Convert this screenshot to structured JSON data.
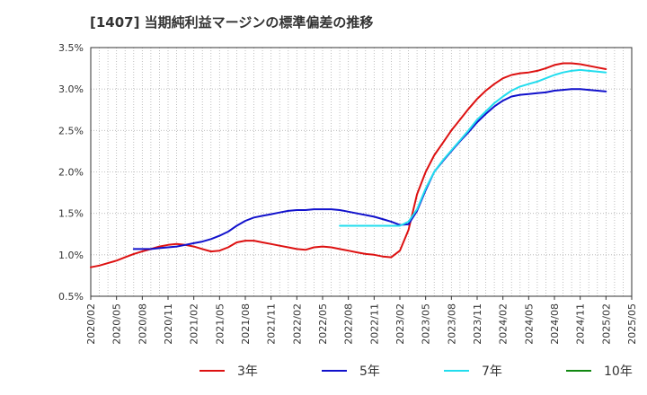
{
  "chart_data": {
    "type": "line",
    "title": "[1407]  当期純利益マージンの標準偏差の推移",
    "xlabel": "",
    "ylabel": "",
    "x_ticks": [
      "2020/02",
      "2020/05",
      "2020/08",
      "2020/11",
      "2021/02",
      "2021/05",
      "2021/08",
      "2021/11",
      "2022/02",
      "2022/05",
      "2022/08",
      "2022/11",
      "2023/02",
      "2023/05",
      "2023/08",
      "2023/11",
      "2024/02",
      "2024/05",
      "2024/08",
      "2024/11",
      "2025/02",
      "2025/05"
    ],
    "y_ticks": [
      "0.5%",
      "1.0%",
      "1.5%",
      "2.0%",
      "2.5%",
      "3.0%",
      "3.5%"
    ],
    "ylim": [
      0.5,
      3.5
    ],
    "grid": true,
    "legend_position": "bottom",
    "colors": {
      "3年": "#dd1111",
      "5年": "#1111cc",
      "7年": "#22ddee",
      "10年": "#118811"
    },
    "series": [
      {
        "name": "3年",
        "color": "#dd1111",
        "x": [
          "2020/02",
          "2020/03",
          "2020/04",
          "2020/05",
          "2020/06",
          "2020/07",
          "2020/08",
          "2020/09",
          "2020/10",
          "2020/11",
          "2020/12",
          "2021/01",
          "2021/02",
          "2021/03",
          "2021/04",
          "2021/05",
          "2021/06",
          "2021/07",
          "2021/08",
          "2021/09",
          "2021/10",
          "2021/11",
          "2021/12",
          "2022/01",
          "2022/02",
          "2022/03",
          "2022/04",
          "2022/05",
          "2022/06",
          "2022/07",
          "2022/08",
          "2022/09",
          "2022/10",
          "2022/11",
          "2022/12",
          "2023/01",
          "2023/02",
          "2023/03",
          "2023/04",
          "2023/05",
          "2023/06",
          "2023/07",
          "2023/08",
          "2023/09",
          "2023/10",
          "2023/11",
          "2023/12",
          "2024/01",
          "2024/02",
          "2024/03",
          "2024/04",
          "2024/05",
          "2024/06",
          "2024/07",
          "2024/08",
          "2024/09",
          "2024/10",
          "2024/11",
          "2024/12",
          "2025/01",
          "2025/02"
        ],
        "values": [
          0.85,
          0.87,
          0.9,
          0.93,
          0.97,
          1.01,
          1.04,
          1.07,
          1.1,
          1.12,
          1.13,
          1.12,
          1.1,
          1.07,
          1.04,
          1.05,
          1.09,
          1.15,
          1.17,
          1.17,
          1.15,
          1.13,
          1.11,
          1.09,
          1.07,
          1.06,
          1.09,
          1.1,
          1.09,
          1.07,
          1.05,
          1.03,
          1.01,
          1.0,
          0.98,
          0.97,
          1.05,
          1.3,
          1.73,
          2.0,
          2.2,
          2.35,
          2.5,
          2.63,
          2.76,
          2.88,
          2.98,
          3.06,
          3.13,
          3.17,
          3.19,
          3.2,
          3.22,
          3.25,
          3.29,
          3.31,
          3.31,
          3.3,
          3.28,
          3.26,
          3.24
        ]
      },
      {
        "name": "5年",
        "color": "#1111cc",
        "x": [
          "2020/07",
          "2020/08",
          "2020/09",
          "2020/10",
          "2020/11",
          "2020/12",
          "2021/01",
          "2021/02",
          "2021/03",
          "2021/04",
          "2021/05",
          "2021/06",
          "2021/07",
          "2021/08",
          "2021/09",
          "2021/10",
          "2021/11",
          "2021/12",
          "2022/01",
          "2022/02",
          "2022/03",
          "2022/04",
          "2022/05",
          "2022/06",
          "2022/07",
          "2022/08",
          "2022/09",
          "2022/10",
          "2022/11",
          "2022/12",
          "2023/01",
          "2023/02",
          "2023/03",
          "2023/04",
          "2023/05",
          "2023/06",
          "2023/07",
          "2023/08",
          "2023/09",
          "2023/10",
          "2023/11",
          "2023/12",
          "2024/01",
          "2024/02",
          "2024/03",
          "2024/04",
          "2024/05",
          "2024/06",
          "2024/07",
          "2024/08",
          "2024/09",
          "2024/10",
          "2024/11",
          "2024/12",
          "2025/01",
          "2025/02"
        ],
        "values": [
          1.07,
          1.07,
          1.07,
          1.08,
          1.09,
          1.1,
          1.12,
          1.14,
          1.16,
          1.19,
          1.23,
          1.28,
          1.35,
          1.41,
          1.45,
          1.47,
          1.49,
          1.51,
          1.53,
          1.54,
          1.54,
          1.55,
          1.55,
          1.55,
          1.54,
          1.52,
          1.5,
          1.48,
          1.46,
          1.43,
          1.4,
          1.36,
          1.37,
          1.53,
          1.78,
          2.0,
          2.13,
          2.25,
          2.37,
          2.48,
          2.6,
          2.7,
          2.79,
          2.86,
          2.91,
          2.93,
          2.94,
          2.95,
          2.96,
          2.98,
          2.99,
          3.0,
          3.0,
          2.99,
          2.98,
          2.97
        ]
      },
      {
        "name": "7年",
        "color": "#22ddee",
        "x": [
          "2022/07",
          "2022/08",
          "2022/09",
          "2022/10",
          "2022/11",
          "2022/12",
          "2023/01",
          "2023/02",
          "2023/03",
          "2023/04",
          "2023/05",
          "2023/06",
          "2023/07",
          "2023/08",
          "2023/09",
          "2023/10",
          "2023/11",
          "2023/12",
          "2024/01",
          "2024/02",
          "2024/03",
          "2024/04",
          "2024/05",
          "2024/06",
          "2024/07",
          "2024/08",
          "2024/09",
          "2024/10",
          "2024/11",
          "2024/12",
          "2025/01",
          "2025/02"
        ],
        "values": [
          1.35,
          1.35,
          1.35,
          1.35,
          1.35,
          1.35,
          1.35,
          1.35,
          1.4,
          1.55,
          1.8,
          2.0,
          2.14,
          2.26,
          2.38,
          2.5,
          2.63,
          2.73,
          2.83,
          2.91,
          2.98,
          3.03,
          3.06,
          3.09,
          3.13,
          3.17,
          3.2,
          3.22,
          3.23,
          3.22,
          3.21,
          3.2
        ]
      },
      {
        "name": "10年",
        "color": "#118811",
        "x": [],
        "values": []
      }
    ]
  }
}
